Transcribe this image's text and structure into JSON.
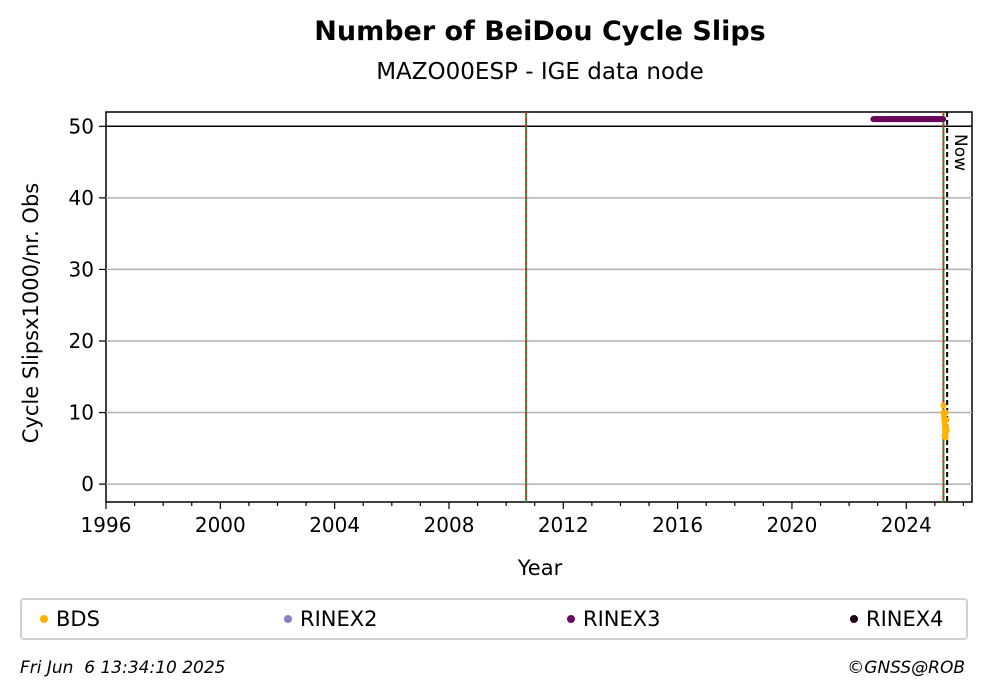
{
  "chart_data": {
    "type": "scatter",
    "title": "Number of BeiDou Cycle Slips",
    "subtitle": "MAZO00ESP - IGE data node",
    "xlabel": "Year",
    "ylabel": "Cycle Slipsx1000/nr. Obs",
    "xlim": [
      1996,
      2026.3
    ],
    "ylim": [
      -2.5,
      52
    ],
    "xticks": [
      1996,
      2000,
      2004,
      2008,
      2012,
      2016,
      2020,
      2024
    ],
    "yticks": [
      0,
      10,
      20,
      30,
      40,
      50
    ],
    "grid": "y",
    "limit_line": 50,
    "vertical_markers": [
      {
        "x": 2010.7,
        "style": "red-green-dashed"
      },
      {
        "x": 2025.3,
        "style": "red-green-dashed"
      },
      {
        "x": 2025.43,
        "style": "black-dashed",
        "label": "Now"
      }
    ],
    "series": [
      {
        "name": "BDS",
        "color": "#ffb300",
        "points": [
          [
            2025.3,
            11
          ],
          [
            2025.3,
            10
          ],
          [
            2025.32,
            9.5
          ],
          [
            2025.33,
            9
          ],
          [
            2025.34,
            8.5
          ],
          [
            2025.35,
            8
          ],
          [
            2025.36,
            7.5
          ],
          [
            2025.37,
            7
          ],
          [
            2025.38,
            6.5
          ],
          [
            2025.4,
            8
          ],
          [
            2025.41,
            9
          ],
          [
            2025.42,
            7.5
          ],
          [
            2025.38,
            10
          ],
          [
            2025.34,
            6.8
          ]
        ]
      },
      {
        "name": "RINEX2",
        "color": "#8080c0",
        "points": []
      },
      {
        "name": "RINEX3",
        "color": "#6a0a5a",
        "points": "range:2022.85-2025.3@51"
      },
      {
        "name": "RINEX4",
        "color": "#1a0010",
        "points": []
      }
    ],
    "legend_position": "bottom"
  },
  "legend": [
    "BDS",
    "RINEX2",
    "RINEX3",
    "RINEX4"
  ],
  "footer": {
    "date": "Fri Jun  6 13:34:10 2025",
    "credit": "©GNSS@ROB"
  }
}
